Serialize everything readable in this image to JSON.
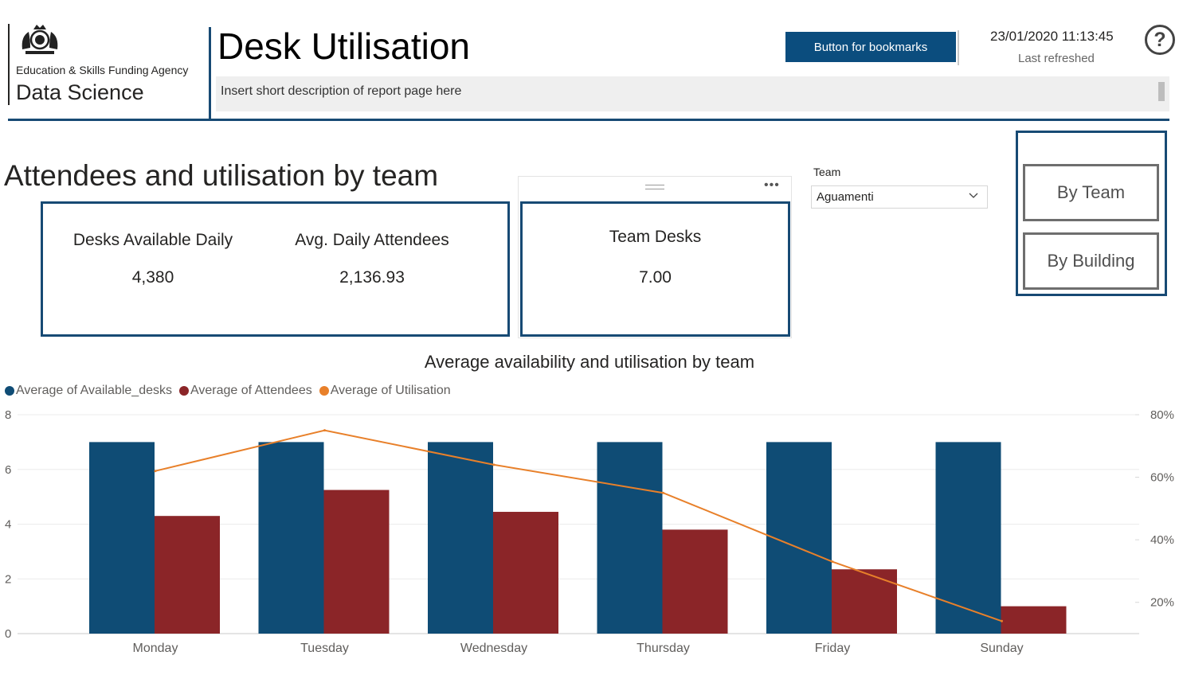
{
  "header": {
    "agency": "Education & Skills Funding Agency",
    "division": "Data Science",
    "title": "Desk Utilisation",
    "description": "Insert short description of report page here",
    "bookmark_button": "Button for bookmarks",
    "refresh_time": "23/01/2020 11:13:45",
    "refresh_label": "Last refreshed",
    "help_symbol": "?"
  },
  "section": {
    "title": "Attendees and utilisation by team"
  },
  "kpis": {
    "desks_label": "Desks Available Daily",
    "desks_value": "4,380",
    "attendees_label": "Avg. Daily Attendees",
    "attendees_value": "2,136.93",
    "team_desks_label": "Team Desks",
    "team_desks_value": "7.00"
  },
  "slicer": {
    "label": "Team",
    "selected": "Aguamenti"
  },
  "nav": {
    "by_team": "By Team",
    "by_building": "By Building"
  },
  "colors": {
    "available": "#0f4c75",
    "attendees": "#8b2528",
    "utilisation": "#e8802a",
    "accent": "#174a74"
  },
  "chart_data": {
    "type": "bar",
    "title": "Average availability and utilisation by team",
    "categories": [
      "Monday",
      "Tuesday",
      "Wednesday",
      "Thursday",
      "Friday",
      "Sunday"
    ],
    "series": [
      {
        "name": "Average of Available_desks",
        "type": "bar",
        "axis": "left",
        "values": [
          7,
          7,
          7,
          7,
          7,
          7
        ]
      },
      {
        "name": "Average of Attendees",
        "type": "bar",
        "axis": "left",
        "values": [
          4.3,
          5.25,
          4.45,
          3.8,
          2.35,
          1.0
        ]
      },
      {
        "name": "Average of Utilisation",
        "type": "line",
        "axis": "right",
        "values": [
          0.62,
          0.75,
          0.64,
          0.55,
          0.33,
          0.14
        ]
      }
    ],
    "y_left": {
      "min": 0,
      "max": 8,
      "ticks": [
        "0",
        "2",
        "4",
        "6",
        "8"
      ]
    },
    "y_right": {
      "min": 0.1,
      "max": 0.8,
      "ticks": [
        "20%",
        "40%",
        "60%",
        "80%"
      ]
    },
    "legend_position": "top-left"
  }
}
